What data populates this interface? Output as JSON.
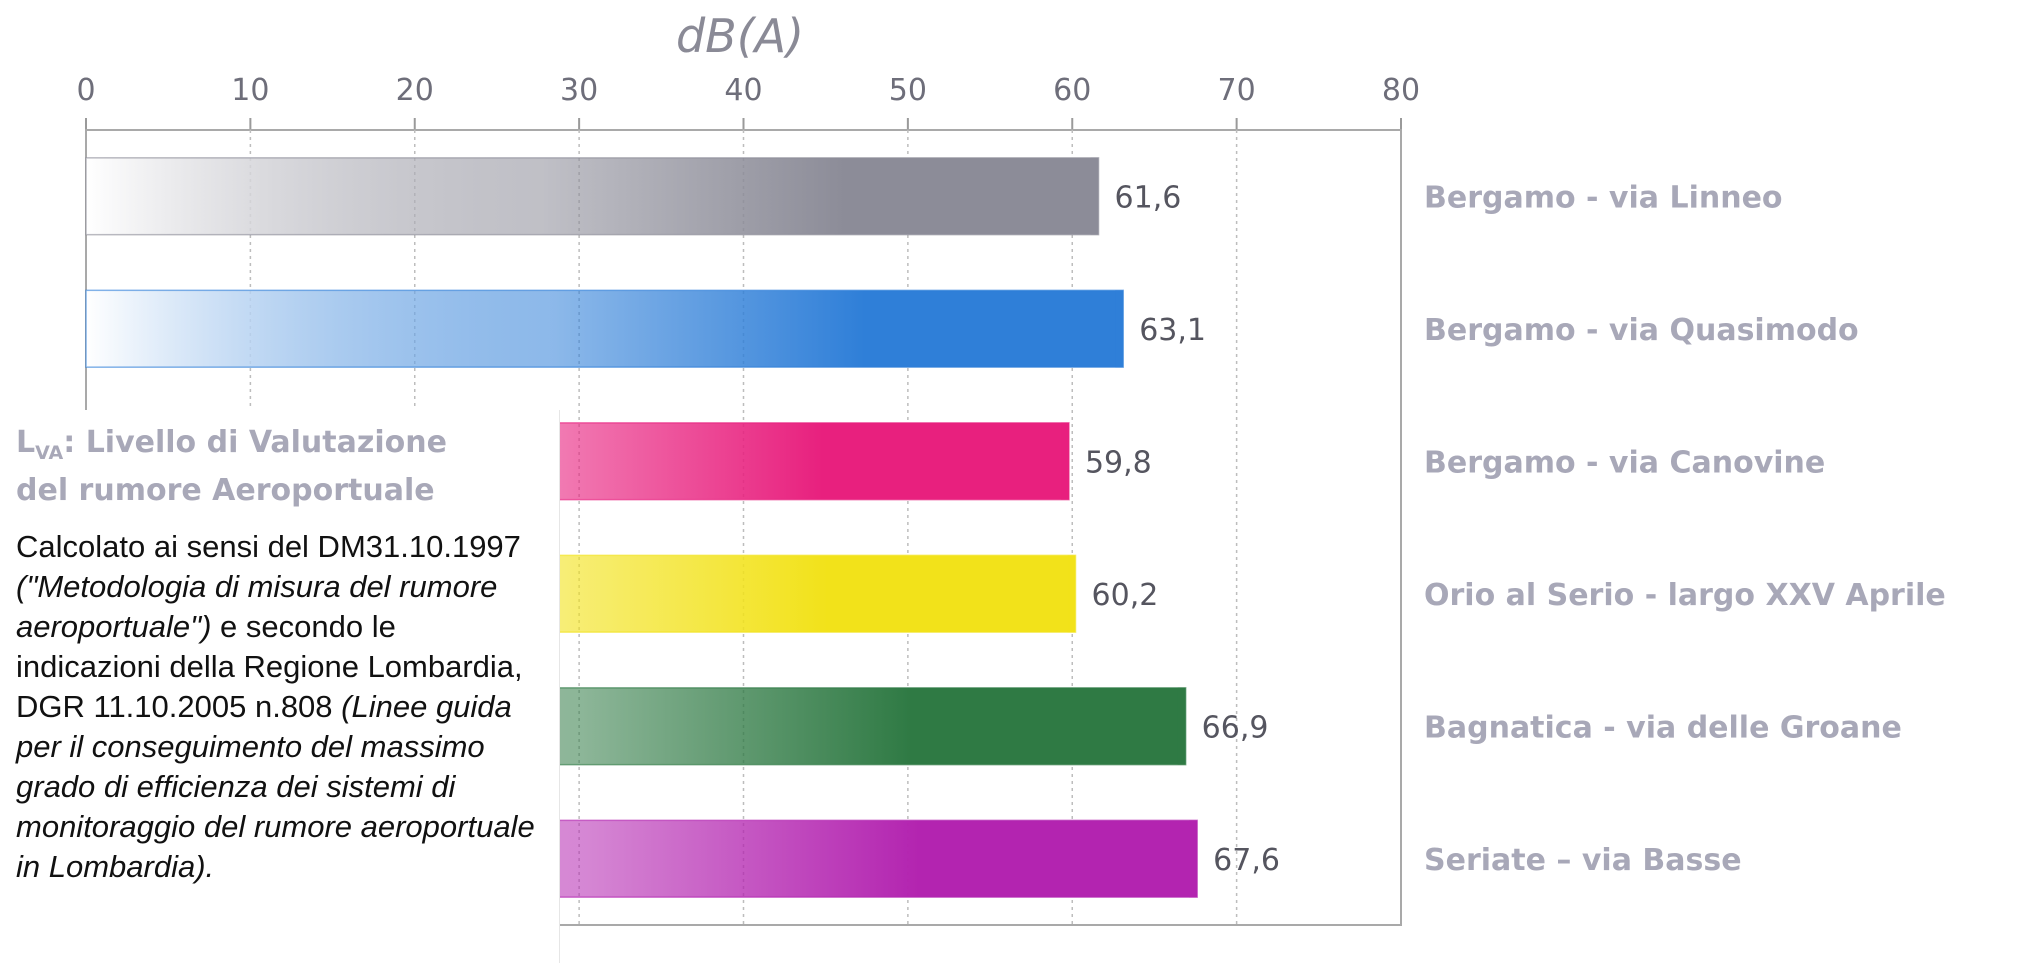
{
  "chart_data": {
    "type": "bar",
    "orientation": "horizontal",
    "unit_label": "dB(A)",
    "xlim": [
      0,
      80
    ],
    "ticks": [
      0,
      10,
      20,
      30,
      40,
      50,
      60,
      70,
      80
    ],
    "grid": true,
    "categories": [
      "Bergamo - via Linneo",
      "Bergamo - via Quasimodo",
      "Bergamo - via Canovine",
      "Orio al Serio - largo XXV Aprile",
      "Bagnatica - via delle Groane",
      "Seriate – via Basse"
    ],
    "values": [
      61.6,
      63.1,
      59.8,
      60.2,
      66.9,
      67.6
    ],
    "value_labels": [
      "61,6",
      "63,1",
      "59,8",
      "60,2",
      "66,9",
      "67,6"
    ],
    "colors": [
      "#8c8c98",
      "#2f7fd8",
      "#e8207e",
      "#f2e21a",
      "#2f7a44",
      "#b324b0"
    ]
  },
  "info": {
    "title_prefix": "L",
    "title_subscript": "VA",
    "title_line1": ": Livello di Valutazione",
    "title_line2": "del rumore Aeroportuale",
    "text1": "Calcolato ai sensi del DM31.10.1997 ",
    "text2": "(\"Metodologia di misura del rumore aeroportuale\")",
    "text3": " e secondo le indicazioni della Regione Lombardia, DGR 11.10.2005 n.808 ",
    "text4": "(Linee guida per il conseguimento del massimo grado di efficienza dei sistemi di monitoraggio del rumore aeroportuale in Lombardia)."
  }
}
